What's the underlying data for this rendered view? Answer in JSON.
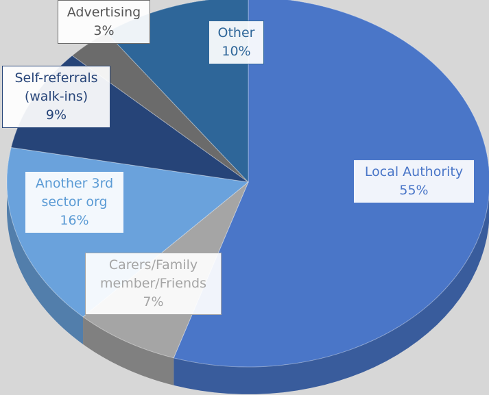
{
  "chart_data": {
    "type": "pie",
    "categories": [
      "Local Authority",
      "Carers/Family member/Friends",
      "Another 3rd sector org",
      "Self-referrals (walk-ins)",
      "Advertising",
      "Other"
    ],
    "values": [
      55,
      7,
      16,
      9,
      3,
      10
    ],
    "value_labels": [
      "55%",
      "7%",
      "16%",
      "9%",
      "3%",
      "10%"
    ],
    "colors": [
      "#4a76c8",
      "#a5a5a5",
      "#6aa2dc",
      "#264478",
      "#6b6b6b",
      "#2e6699"
    ]
  }
}
